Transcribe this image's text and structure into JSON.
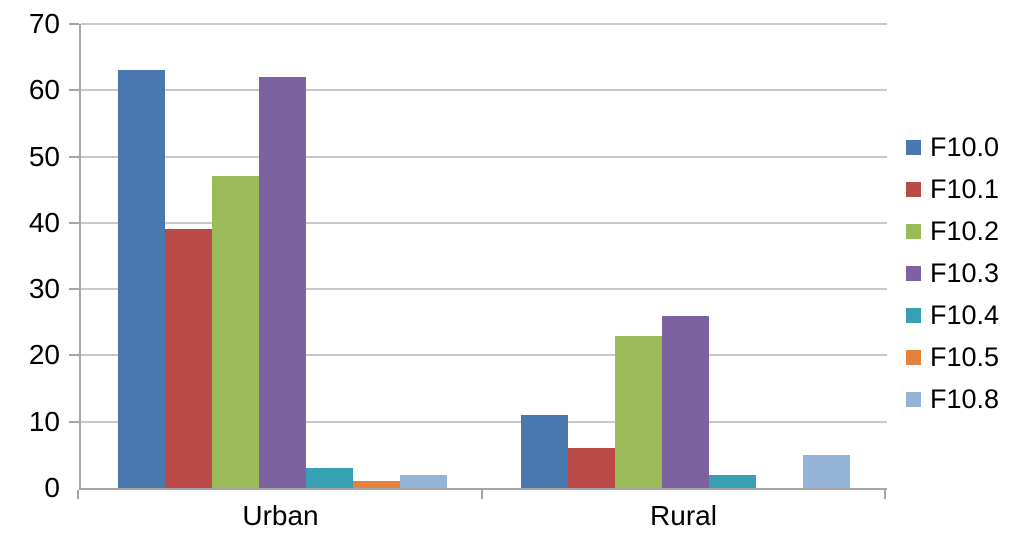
{
  "chart_data": {
    "type": "bar",
    "title": "",
    "categories": [
      "Urban",
      "Rural"
    ],
    "series": [
      {
        "name": "F10.0",
        "color": "#4878AE",
        "values": [
          63,
          11
        ]
      },
      {
        "name": "F10.1",
        "color": "#BA4A47",
        "values": [
          39,
          6
        ]
      },
      {
        "name": "F10.2",
        "color": "#9BBB59",
        "values": [
          47,
          23
        ]
      },
      {
        "name": "F10.3",
        "color": "#7D62A2",
        "values": [
          62,
          26
        ]
      },
      {
        "name": "F10.4",
        "color": "#38A0B5",
        "values": [
          3,
          2
        ]
      },
      {
        "name": "F10.5",
        "color": "#E5813C",
        "values": [
          1,
          0
        ]
      },
      {
        "name": "F10.8",
        "color": "#95B3D7",
        "values": [
          2,
          5
        ]
      }
    ],
    "xlabel": "",
    "ylabel": "",
    "ylim": [
      0,
      70
    ],
    "yticks": [
      0,
      10,
      20,
      30,
      40,
      50,
      60,
      70
    ],
    "grid": true,
    "legend_position": "right"
  },
  "style_colors": {
    "gridline": "#C9C9C9",
    "axis": "#A6A6A6",
    "text": "#000000",
    "background": "#FFFFFF"
  }
}
